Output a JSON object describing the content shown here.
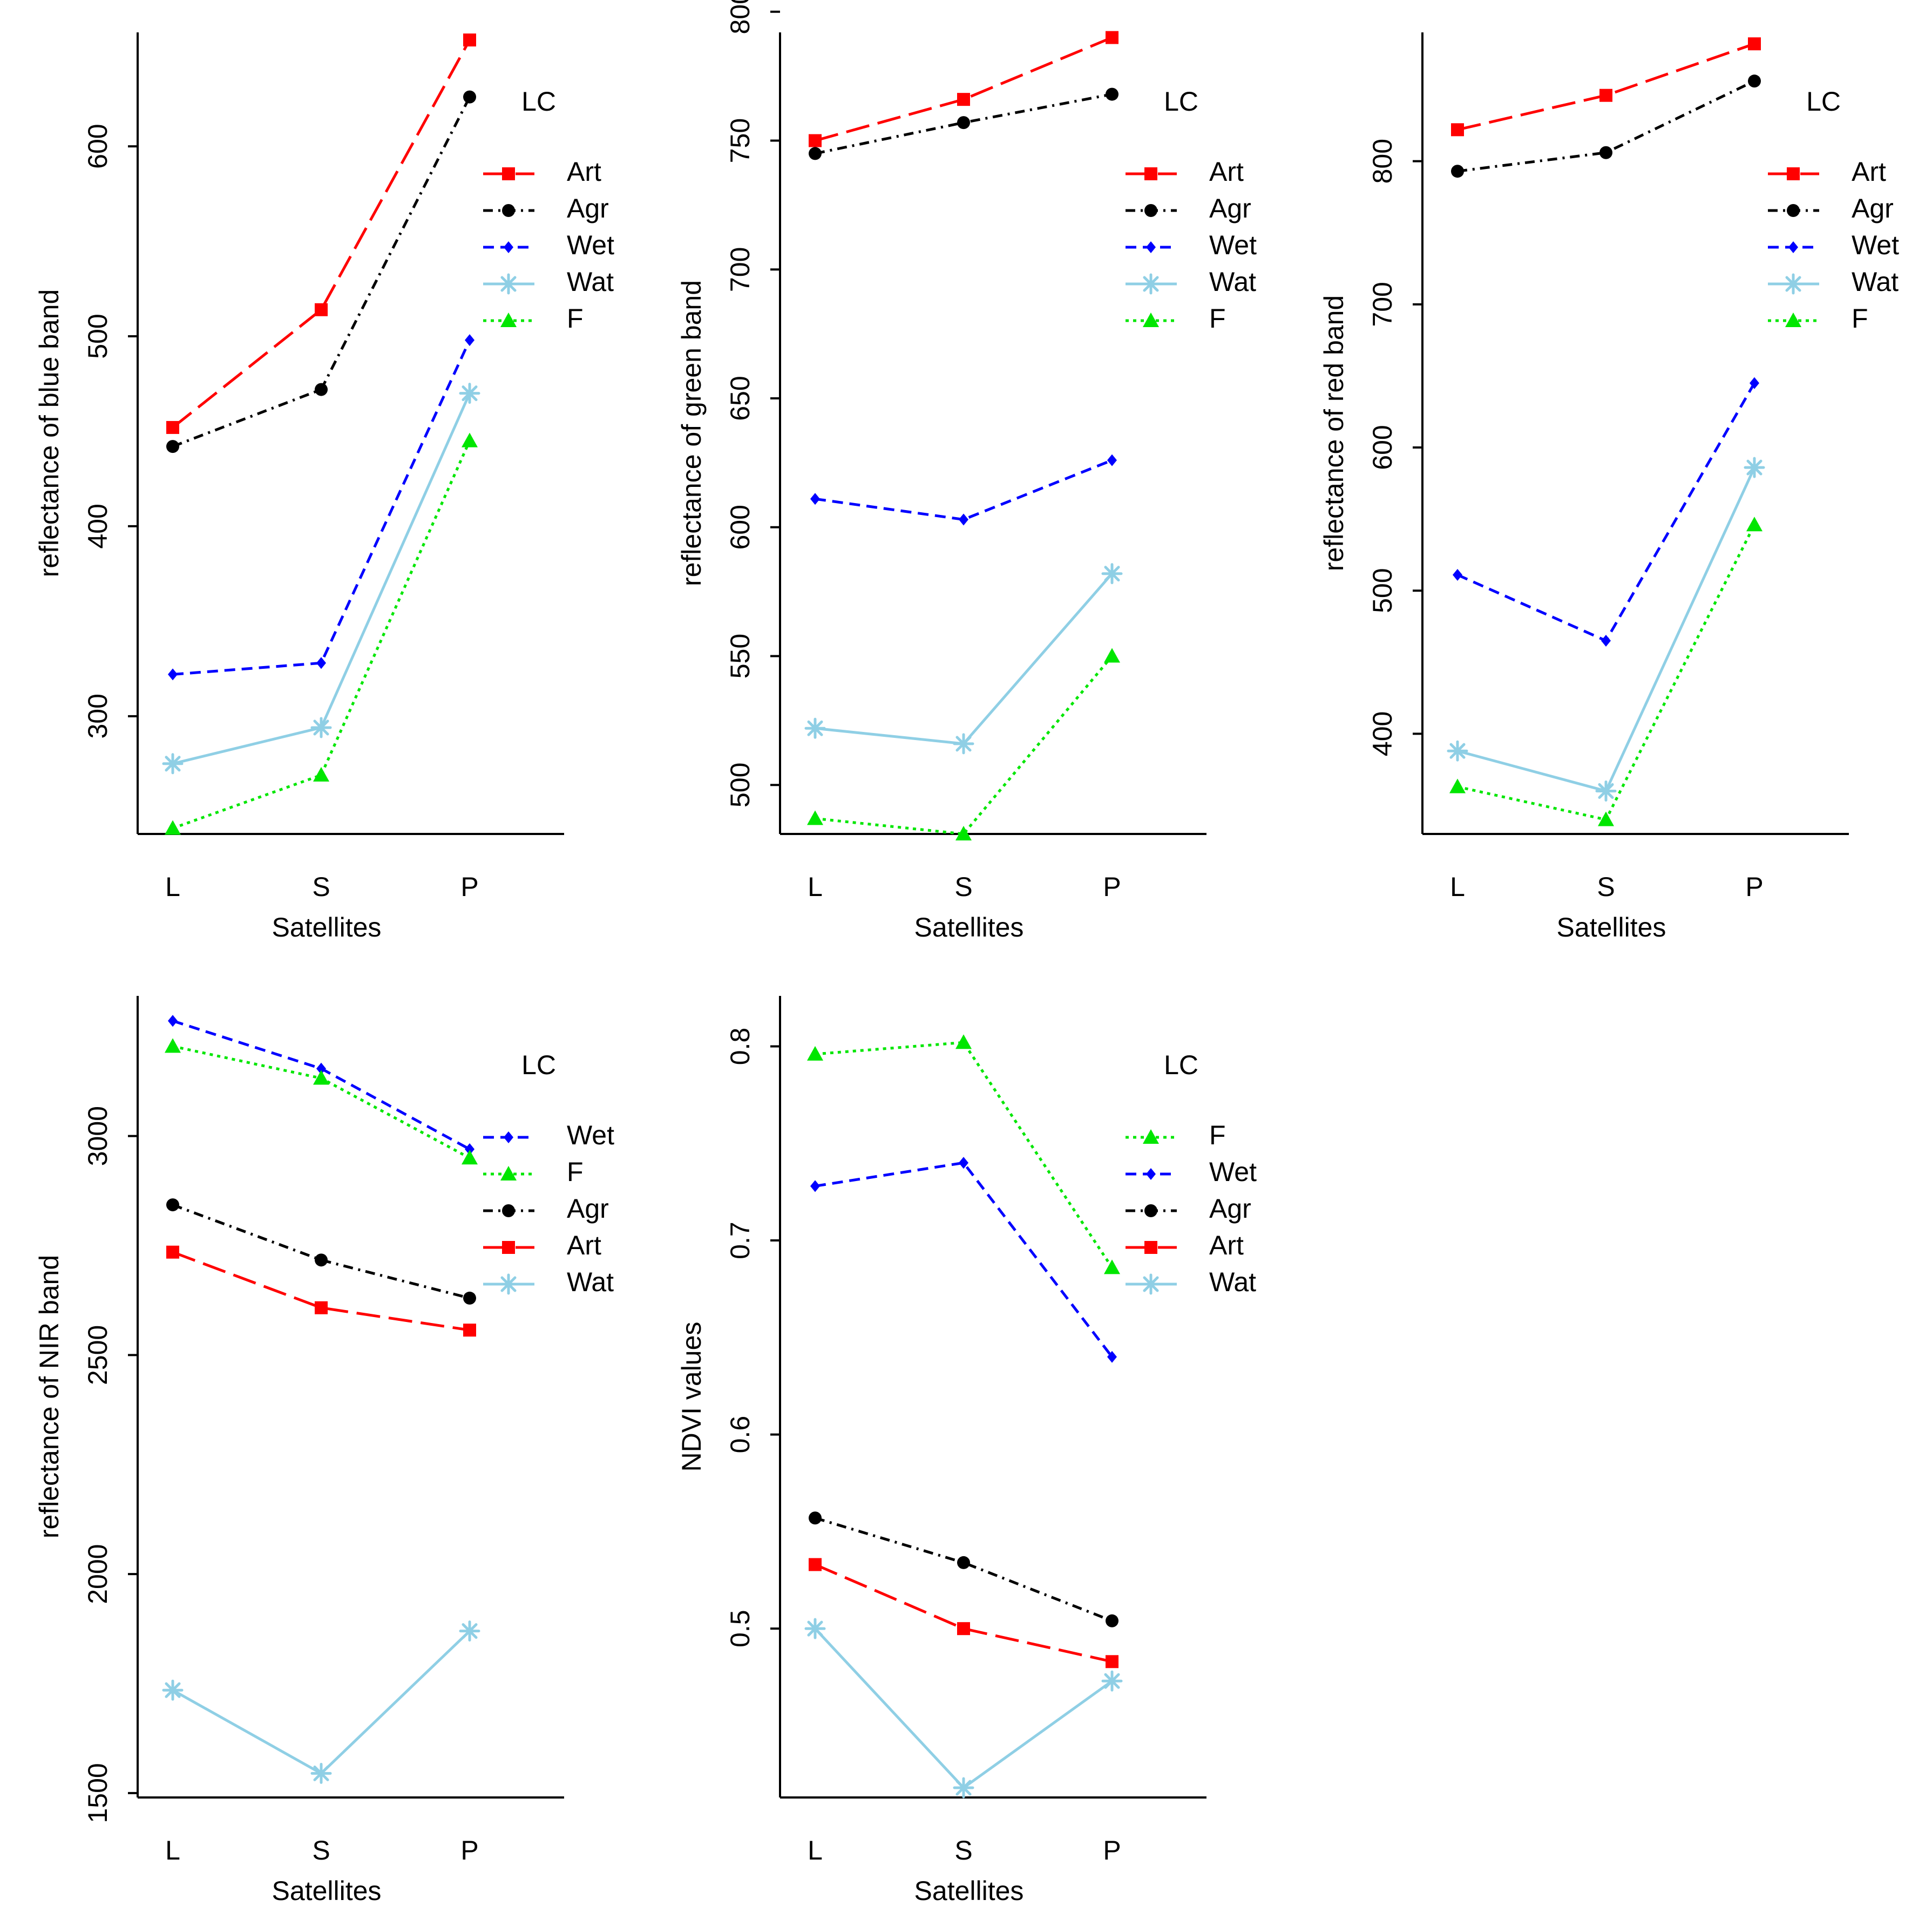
{
  "colors": {
    "Art": "#FF0000",
    "Agr": "#000000",
    "Wet": "#0000FF",
    "Wat": "#8FCFE5",
    "F": "#00E600"
  },
  "chart_data": [
    {
      "type": "line",
      "id": "blue",
      "categories": [
        "L",
        "S",
        "P"
      ],
      "xlabel": "Satellites",
      "ylabel": "reflectance of blue band",
      "ylim": [
        238,
        660
      ],
      "yticks": [
        300,
        400,
        500,
        600
      ],
      "legend_title": "LC",
      "legend_order": [
        "Art",
        "Agr",
        "Wet",
        "Wat",
        "F"
      ],
      "series": [
        {
          "name": "Art",
          "values": [
            452,
            514,
            656
          ]
        },
        {
          "name": "Agr",
          "values": [
            442,
            472,
            626
          ]
        },
        {
          "name": "Wet",
          "values": [
            322,
            328,
            498
          ]
        },
        {
          "name": "Wat",
          "values": [
            275,
            294,
            470
          ]
        },
        {
          "name": "F",
          "values": [
            241,
            269,
            445
          ]
        }
      ]
    },
    {
      "type": "line",
      "id": "green",
      "categories": [
        "L",
        "S",
        "P"
      ],
      "xlabel": "Satellites",
      "ylabel": "reflectance of green band",
      "ylim": [
        481,
        792
      ],
      "yticks": [
        500,
        550,
        600,
        650,
        700,
        750,
        800
      ],
      "legend_title": "LC",
      "legend_order": [
        "Art",
        "Agr",
        "Wet",
        "Wat",
        "F"
      ],
      "series": [
        {
          "name": "Art",
          "values": [
            750,
            766,
            790
          ]
        },
        {
          "name": "Agr",
          "values": [
            745,
            757,
            768
          ]
        },
        {
          "name": "Wet",
          "values": [
            611,
            603,
            626
          ]
        },
        {
          "name": "Wat",
          "values": [
            522,
            516,
            582
          ]
        },
        {
          "name": "F",
          "values": [
            487,
            481,
            550
          ]
        }
      ]
    },
    {
      "type": "line",
      "id": "red",
      "categories": [
        "L",
        "S",
        "P"
      ],
      "xlabel": "Satellites",
      "ylabel": "reflectance of red band",
      "ylim": [
        330,
        890
      ],
      "yticks": [
        400,
        500,
        600,
        700,
        800
      ],
      "legend_title": "LC",
      "legend_order": [
        "Art",
        "Agr",
        "Wet",
        "Wat",
        "F"
      ],
      "series": [
        {
          "name": "Art",
          "values": [
            822,
            846,
            882
          ]
        },
        {
          "name": "Agr",
          "values": [
            793,
            806,
            856
          ]
        },
        {
          "name": "Wet",
          "values": [
            511,
            465,
            645
          ]
        },
        {
          "name": "Wat",
          "values": [
            388,
            360,
            586
          ]
        },
        {
          "name": "F",
          "values": [
            363,
            340,
            546
          ]
        }
      ]
    },
    {
      "type": "line",
      "id": "nir",
      "categories": [
        "L",
        "S",
        "P"
      ],
      "xlabel": "Satellites",
      "ylabel": "reflectance of NIR band",
      "ylim": [
        1490,
        3320
      ],
      "yticks": [
        1500,
        2000,
        2500,
        3000
      ],
      "legend_title": "LC",
      "legend_order": [
        "Wet",
        "F",
        "Agr",
        "Art",
        "Wat"
      ],
      "series": [
        {
          "name": "Art",
          "values": [
            2735,
            2608,
            2557
          ]
        },
        {
          "name": "Agr",
          "values": [
            2843,
            2717,
            2630
          ]
        },
        {
          "name": "Wet",
          "values": [
            3263,
            3154,
            2970
          ]
        },
        {
          "name": "Wat",
          "values": [
            1735,
            1545,
            1870
          ]
        },
        {
          "name": "F",
          "values": [
            3205,
            3132,
            2950
          ]
        }
      ]
    },
    {
      "type": "line",
      "id": "ndvi",
      "categories": [
        "L",
        "S",
        "P"
      ],
      "xlabel": "Satellites",
      "ylabel": "NDVI values",
      "ylim": [
        0.413,
        0.826
      ],
      "yticks": [
        0.5,
        0.6,
        0.7,
        0.8
      ],
      "legend_title": "LC",
      "legend_order": [
        "F",
        "Wet",
        "Agr",
        "Art",
        "Wat"
      ],
      "series": [
        {
          "name": "Art",
          "values": [
            0.533,
            0.5,
            0.483
          ]
        },
        {
          "name": "Agr",
          "values": [
            0.557,
            0.534,
            0.504
          ]
        },
        {
          "name": "Wet",
          "values": [
            0.728,
            0.74,
            0.64
          ]
        },
        {
          "name": "Wat",
          "values": [
            0.5,
            0.418,
            0.473
          ]
        },
        {
          "name": "F",
          "values": [
            0.796,
            0.802,
            0.686
          ]
        }
      ]
    }
  ]
}
